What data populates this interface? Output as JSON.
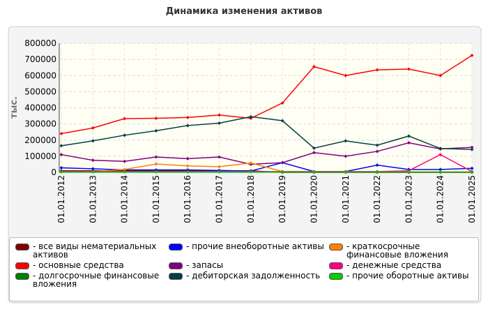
{
  "chart_data": {
    "type": "line",
    "title": "Динамика изменения активов",
    "y_label": "тыс.",
    "categories": [
      "01.01.2012",
      "01.01.2013",
      "01.01.2014",
      "01.01.2015",
      "01.01.2016",
      "01.01.2017",
      "01.01.2018",
      "01.01.2019",
      "01.01.2020",
      "01.01.2021",
      "01.01.2022",
      "01.01.2023",
      "01.01.2024",
      "01.01.2025"
    ],
    "ylim": [
      0,
      800000
    ],
    "yticks": [
      0,
      100000,
      200000,
      300000,
      400000,
      500000,
      600000,
      700000,
      800000
    ],
    "grid": true,
    "series": [
      {
        "name": "- все виды нематериальных активов",
        "color": "#800000",
        "values": [
          10000,
          10000,
          10000,
          10000,
          10000,
          10000,
          10000,
          0,
          0,
          0,
          0,
          0,
          0,
          0
        ]
      },
      {
        "name": "- основные средства",
        "color": "#ff0000",
        "values": [
          240000,
          275000,
          333000,
          335000,
          340000,
          355000,
          335000,
          430000,
          655000,
          600000,
          635000,
          640000,
          600000,
          725000
        ]
      },
      {
        "name": "- долгосрочные финансовые вложения",
        "color": "#008000",
        "values": [
          3000,
          3000,
          3000,
          3000,
          3000,
          3000,
          3000,
          3000,
          3000,
          3000,
          3000,
          3000,
          3000,
          3000
        ]
      },
      {
        "name": "- прочие внеоборотные активы",
        "color": "#0000ff",
        "values": [
          28000,
          22000,
          15000,
          15000,
          15000,
          12000,
          8000,
          60000,
          5000,
          5000,
          45000,
          18000,
          18000,
          25000
        ]
      },
      {
        "name": "- запасы",
        "color": "#800080",
        "values": [
          110000,
          75000,
          68000,
          95000,
          85000,
          95000,
          50000,
          60000,
          122000,
          100000,
          130000,
          183000,
          145000,
          155000
        ]
      },
      {
        "name": "- дебиторская задолженность",
        "color": "#004040",
        "values": [
          165000,
          195000,
          230000,
          258000,
          290000,
          305000,
          345000,
          320000,
          150000,
          195000,
          168000,
          225000,
          148000,
          142000
        ]
      },
      {
        "name": "- краткосрочные финансовые вложения",
        "color": "#ff8000",
        "values": [
          5000,
          5000,
          18000,
          52000,
          40000,
          35000,
          58000,
          5000,
          3000,
          3000,
          3000,
          3000,
          3000,
          3000
        ]
      },
      {
        "name": "- денежные средства",
        "color": "#ff0080",
        "values": [
          5000,
          5000,
          5000,
          5000,
          5000,
          5000,
          5000,
          5000,
          5000,
          5000,
          5000,
          10000,
          110000,
          5000
        ]
      },
      {
        "name": "- прочие оборотные активы",
        "color": "#00cc00",
        "values": [
          2000,
          2000,
          2000,
          2000,
          2000,
          2000,
          2000,
          2000,
          2000,
          2000,
          2000,
          2000,
          2000,
          2000
        ]
      }
    ]
  }
}
